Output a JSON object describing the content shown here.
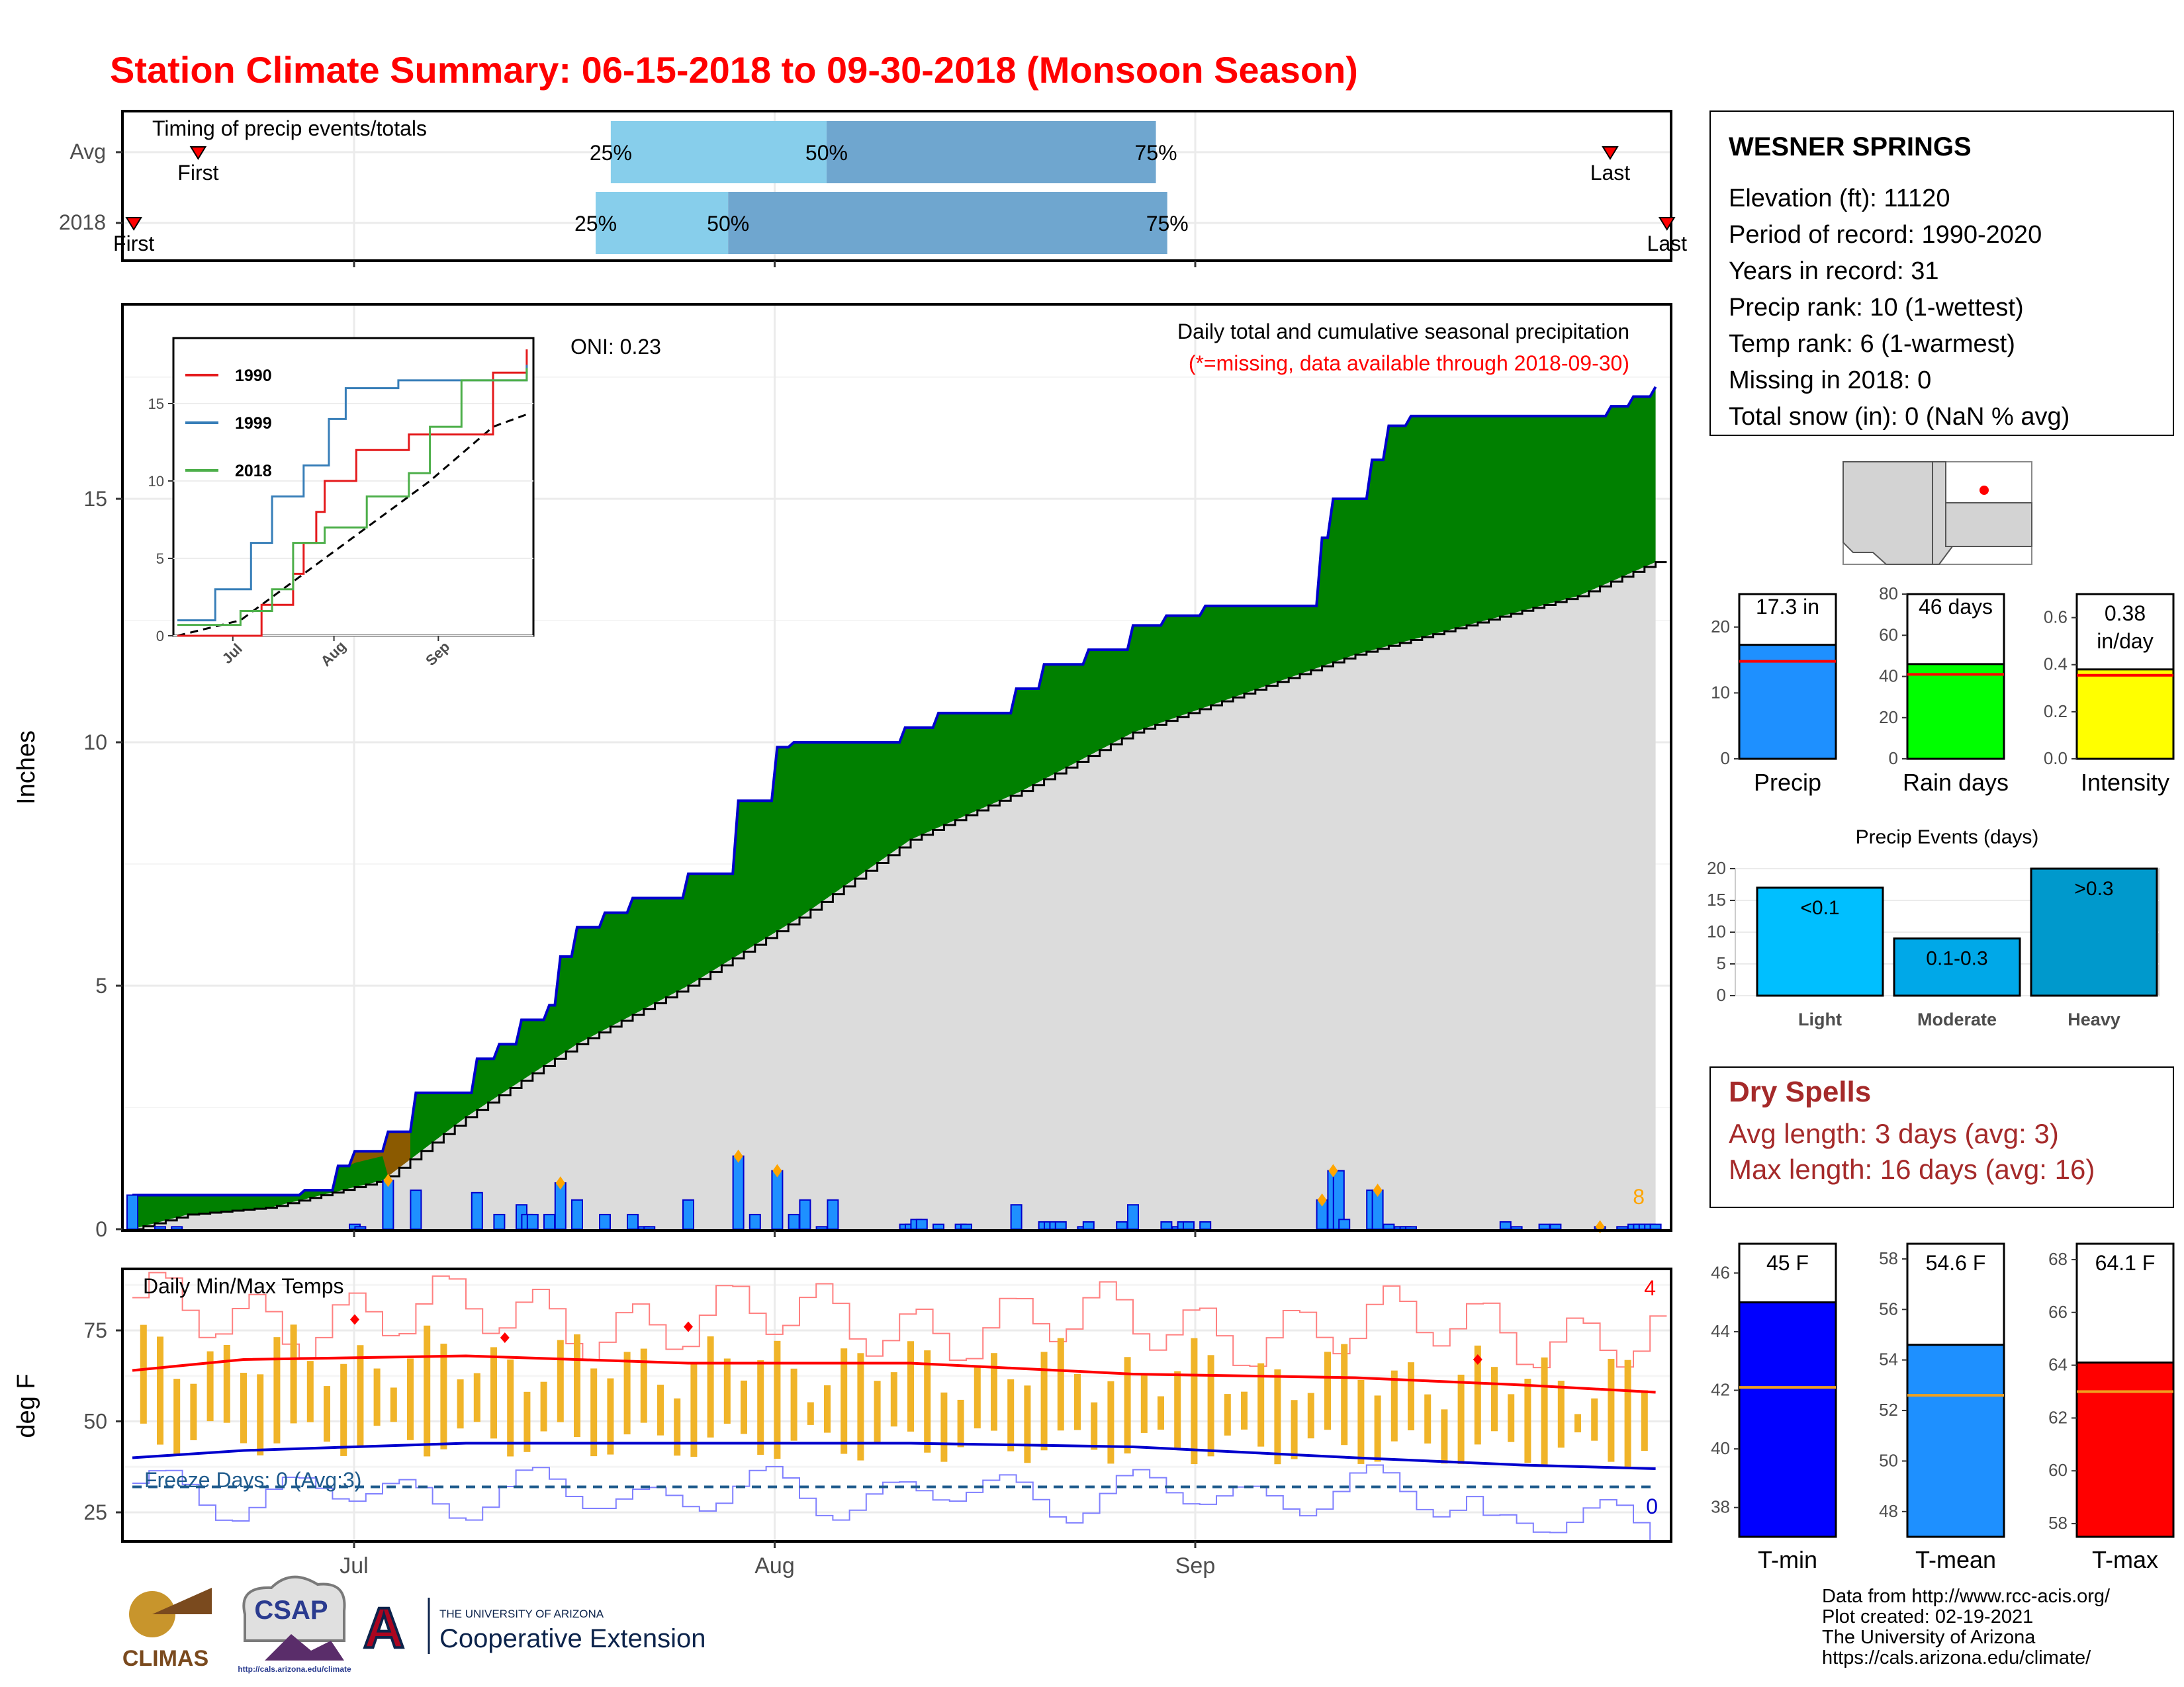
{
  "page": {
    "title": "Station Climate Summary: 06-15-2018 to 09-30-2018 (Monsoon Season)",
    "title_color": "#ff0000"
  },
  "timing_panel": {
    "label": "Timing of precip events/totals",
    "rows": [
      {
        "name": "Avg",
        "first_label": "First",
        "last_label": "Last",
        "first_day": 20,
        "last_day": 393,
        "p25_day": 129,
        "p50_day": 186,
        "p75_day": 273,
        "p25_label": "25%",
        "p50_label": "50%",
        "p75_label": "75%"
      },
      {
        "name": "2018",
        "first_label": "First",
        "last_label": "Last",
        "first_day": 3,
        "last_day": 408,
        "p25_day": 125,
        "p50_day": 160,
        "p75_day": 276,
        "p25_label": "25%",
        "p50_label": "50%",
        "p75_label": "75%"
      }
    ]
  },
  "precip_panel": {
    "ylabel": "Inches",
    "caption1": "Daily total and cumulative seasonal precipitation",
    "caption2": "(*=missing, data available through 2018-09-30)",
    "oni_label": "ONI: 0.23",
    "count_label": "8",
    "yticks": [
      "0",
      "5",
      "10",
      "15"
    ],
    "xticks": [
      "Jul",
      "Aug",
      "Sep"
    ]
  },
  "inset": {
    "legend": [
      "1990",
      "1999",
      "2018"
    ],
    "colors": {
      "1990": "#e41a1c",
      "1999": "#377eb8",
      "2018": "#4daf4a"
    },
    "yticks": [
      "0",
      "5",
      "10",
      "15"
    ],
    "xticks": [
      "Jul",
      "Aug",
      "Sep"
    ]
  },
  "temp_panel": {
    "ylabel": "deg F",
    "label": "Daily Min/Max Temps",
    "freeze_label": "Freeze Days: 0 (Avg:3)",
    "count_hot": "4",
    "count_cold": "0",
    "yticks": [
      "25",
      "50",
      "75"
    ]
  },
  "station": {
    "name": "WESNER SPRINGS",
    "lines": [
      "Elevation (ft): 11120",
      "Period of record: 1990-2020",
      "Years in record: 31",
      "Precip rank: 10 (1-wettest)",
      "Temp rank: 6 (1-warmest)",
      "Missing in 2018: 0",
      "Total snow (in): 0 (NaN % avg)"
    ]
  },
  "gauges": {
    "precip": {
      "label": "Precip",
      "value_text": "17.3 in",
      "value": 17.3,
      "avg": 14.8,
      "ymax": 25,
      "yticks": [
        "0",
        "10",
        "20"
      ],
      "color": "#1e90ff"
    },
    "rain_days": {
      "label": "Rain days",
      "value_text": "46 days",
      "value": 46,
      "avg": 41,
      "ymax": 80,
      "yticks": [
        "0",
        "20",
        "40",
        "60",
        "80"
      ],
      "color": "#00ff00"
    },
    "intensity": {
      "label": "Intensity",
      "value_text": "0.38 in/day",
      "value_line1": "0.38",
      "value_line2": "in/day",
      "value": 0.38,
      "avg": 0.355,
      "ymax": 0.7,
      "yticks": [
        "0.0",
        "0.2",
        "0.4",
        "0.6"
      ],
      "color": "#ffff00"
    }
  },
  "precip_events": {
    "title": "Precip Events (days)",
    "yticks": [
      "0",
      "5",
      "10",
      "15",
      "20"
    ],
    "bars": [
      {
        "category": "Light",
        "range_label": "<0.1",
        "value": 17,
        "color": "#00bfff"
      },
      {
        "category": "Moderate",
        "range_label": "0.1-0.3",
        "value": 9,
        "color": "#00a8e8"
      },
      {
        "category": "Heavy",
        "range_label": ">0.3",
        "value": 20,
        "color": "#0099cc"
      }
    ]
  },
  "dry_spells": {
    "title": "Dry Spells",
    "avg_line": "Avg length: 3 days (avg: 3)",
    "max_line": "Max length: 16 days (avg: 16)",
    "color": "#a52a2a"
  },
  "temp_gauges": {
    "tmin": {
      "label": "T-min",
      "value_text": "45 F",
      "value": 45,
      "avg": 42.1,
      "ymin": 37,
      "ymax": 47,
      "yticks": [
        "38",
        "40",
        "42",
        "44",
        "46"
      ],
      "color": "#0000ff"
    },
    "tmean": {
      "label": "T-mean",
      "value_text": "54.6 F",
      "value": 54.6,
      "avg": 52.6,
      "ymin": 47,
      "ymax": 58.6,
      "yticks": [
        "48",
        "50",
        "52",
        "54",
        "56",
        "58"
      ],
      "color": "#1e90ff"
    },
    "tmax": {
      "label": "T-max",
      "value_text": "64.1 F",
      "value": 64.1,
      "avg": 63.0,
      "ymin": 57.5,
      "ymax": 68.6,
      "yticks": [
        "58",
        "60",
        "62",
        "64",
        "66",
        "68"
      ],
      "color": "#ff0000"
    }
  },
  "footer": {
    "lines": [
      "Data from http://www.rcc-acis.org/",
      "Plot created: 02-19-2021",
      "The University of Arizona",
      "https://cals.arizona.edu/climate/"
    ],
    "logos": {
      "climas": "CLIMAS",
      "csap": "CSAP",
      "csap_url": "http://cals.arizona.edu/climate",
      "ua_letter": "A",
      "ua_line1": "THE UNIVERSITY OF ARIZONA",
      "ua_line2": "Cooperative Extension"
    }
  },
  "chart_data": [
    {
      "type": "area",
      "title": "Daily total and cumulative seasonal precipitation",
      "ylabel": "Inches",
      "xlim": [
        "2018-06-15",
        "2018-09-30"
      ],
      "ylim": [
        0,
        19
      ],
      "daily_precip_in": [
        [
          0,
          0.7
        ],
        [
          5,
          0.05
        ],
        [
          8,
          0.05
        ],
        [
          40,
          0.1
        ],
        [
          41,
          0.05
        ],
        [
          46,
          1.0
        ],
        [
          51,
          0.8
        ],
        [
          62,
          0.75
        ],
        [
          66,
          0.3
        ],
        [
          70,
          0.5
        ],
        [
          71,
          0.3
        ],
        [
          72,
          0.3
        ],
        [
          75,
          0.3
        ],
        [
          77,
          0.95
        ],
        [
          80,
          0.6
        ],
        [
          85,
          0.3
        ],
        [
          90,
          0.3
        ],
        [
          92,
          0.05
        ],
        [
          93,
          0.05
        ],
        [
          100,
          0.6
        ],
        [
          109,
          1.5
        ],
        [
          112,
          0.3
        ],
        [
          116,
          1.2
        ],
        [
          119,
          0.3
        ],
        [
          121,
          0.6
        ],
        [
          124,
          0.05
        ],
        [
          126,
          0.6
        ],
        [
          139,
          0.1
        ],
        [
          140,
          0.1
        ],
        [
          141,
          0.2
        ],
        [
          142,
          0.2
        ],
        [
          145,
          0.1
        ],
        [
          149,
          0.1
        ],
        [
          150,
          0.1
        ],
        [
          159,
          0.5
        ],
        [
          164,
          0.15
        ],
        [
          165,
          0.15
        ],
        [
          166,
          0.15
        ],
        [
          167,
          0.15
        ],
        [
          171,
          0.05
        ],
        [
          172,
          0.15
        ],
        [
          178,
          0.15
        ],
        [
          180,
          0.5
        ],
        [
          186,
          0.15
        ],
        [
          188,
          0.05
        ],
        [
          189,
          0.15
        ],
        [
          190,
          0.15
        ],
        [
          193,
          0.15
        ],
        [
          214,
          0.6
        ],
        [
          216,
          1.2
        ],
        [
          217,
          1.2
        ],
        [
          218,
          0.2
        ],
        [
          223,
          0.8
        ],
        [
          224,
          0.8
        ],
        [
          226,
          0.1
        ],
        [
          228,
          0.05
        ],
        [
          229,
          0.05
        ],
        [
          230,
          0.05
        ],
        [
          247,
          0.15
        ],
        [
          249,
          0.05
        ],
        [
          254,
          0.1
        ],
        [
          256,
          0.1
        ],
        [
          264,
          0.05
        ],
        [
          268,
          0.05
        ],
        [
          270,
          0.1
        ],
        [
          271,
          0.1
        ],
        [
          272,
          0.1
        ],
        [
          273,
          0.1
        ],
        [
          274,
          0.1
        ]
      ],
      "cumulative_2018_in": [
        [
          0,
          0.7
        ],
        [
          31,
          0.8
        ],
        [
          37,
          1.3
        ],
        [
          40,
          1.6
        ],
        [
          46,
          2.0
        ],
        [
          51,
          2.8
        ],
        [
          62,
          3.5
        ],
        [
          66,
          3.8
        ],
        [
          70,
          4.3
        ],
        [
          75,
          4.6
        ],
        [
          77,
          5.6
        ],
        [
          80,
          6.2
        ],
        [
          85,
          6.5
        ],
        [
          90,
          6.8
        ],
        [
          100,
          7.3
        ],
        [
          109,
          8.8
        ],
        [
          116,
          9.9
        ],
        [
          119,
          10.0
        ],
        [
          126,
          10.0
        ],
        [
          139,
          10.3
        ],
        [
          145,
          10.6
        ],
        [
          159,
          11.1
        ],
        [
          164,
          11.6
        ],
        [
          172,
          11.9
        ],
        [
          180,
          12.4
        ],
        [
          186,
          12.6
        ],
        [
          193,
          12.8
        ],
        [
          214,
          14.2
        ],
        [
          216,
          15.0
        ],
        [
          223,
          15.8
        ],
        [
          226,
          16.5
        ],
        [
          230,
          16.7
        ],
        [
          264,
          16.7
        ],
        [
          266,
          16.9
        ],
        [
          270,
          17.1
        ],
        [
          274,
          17.3
        ]
      ],
      "cumulative_avg_in": [
        [
          0,
          0.0
        ],
        [
          10,
          0.3
        ],
        [
          25,
          0.45
        ],
        [
          45,
          1.0
        ],
        [
          60,
          2.3
        ],
        [
          80,
          3.8
        ],
        [
          100,
          5.0
        ],
        [
          120,
          6.4
        ],
        [
          140,
          8.0
        ],
        [
          160,
          9.0
        ],
        [
          180,
          10.2
        ],
        [
          200,
          11.0
        ],
        [
          220,
          11.8
        ],
        [
          240,
          12.4
        ],
        [
          260,
          13.0
        ],
        [
          274,
          13.7
        ]
      ]
    },
    {
      "type": "line",
      "title": "Cumulative precipitation (inset)",
      "series": [
        {
          "name": "1990",
          "points": [
            [
              0,
              0
            ],
            [
              40,
              2
            ],
            [
              55,
              4
            ],
            [
              60,
              6
            ],
            [
              66,
              8
            ],
            [
              70,
              10
            ],
            [
              85,
              12
            ],
            [
              110,
              13
            ],
            [
              150,
              17
            ],
            [
              166,
              18.5
            ]
          ]
        },
        {
          "name": "1999",
          "points": [
            [
              0,
              1
            ],
            [
              18,
              3
            ],
            [
              35,
              6
            ],
            [
              45,
              9
            ],
            [
              60,
              11
            ],
            [
              72,
              14
            ],
            [
              80,
              16
            ],
            [
              105,
              16.5
            ],
            [
              166,
              17.5
            ]
          ]
        },
        {
          "name": "2018",
          "points": [
            [
              0,
              0.7
            ],
            [
              30,
              1.6
            ],
            [
              45,
              3
            ],
            [
              55,
              6
            ],
            [
              70,
              7
            ],
            [
              90,
              9
            ],
            [
              110,
              10.5
            ],
            [
              120,
              13.5
            ],
            [
              135,
              16.5
            ],
            [
              166,
              17.3
            ]
          ]
        }
      ],
      "average": [
        [
          0,
          0
        ],
        [
          30,
          1
        ],
        [
          60,
          4
        ],
        [
          90,
          7
        ],
        [
          120,
          10
        ],
        [
          150,
          13.5
        ],
        [
          166,
          14.3
        ]
      ]
    },
    {
      "type": "line",
      "title": "Daily Min/Max Temps",
      "ylabel": "deg F",
      "ylim": [
        17,
        92
      ],
      "series": [
        {
          "name": "avg max",
          "points": [
            [
              0,
              64
            ],
            [
              20,
              67
            ],
            [
              60,
              68
            ],
            [
              100,
              66
            ],
            [
              140,
              66
            ],
            [
              180,
              63
            ],
            [
              220,
              62
            ],
            [
              250,
              60
            ],
            [
              274,
              58
            ]
          ]
        },
        {
          "name": "avg min",
          "points": [
            [
              0,
              40
            ],
            [
              20,
              42
            ],
            [
              60,
              44
            ],
            [
              100,
              44
            ],
            [
              140,
              44
            ],
            [
              180,
              43
            ],
            [
              220,
              40
            ],
            [
              250,
              38
            ],
            [
              274,
              37
            ]
          ]
        },
        {
          "name": "freeze line",
          "points": [
            [
              0,
              32
            ],
            [
              274,
              32
            ]
          ]
        }
      ],
      "freeze_days": 0,
      "freeze_days_avg": 3
    }
  ]
}
